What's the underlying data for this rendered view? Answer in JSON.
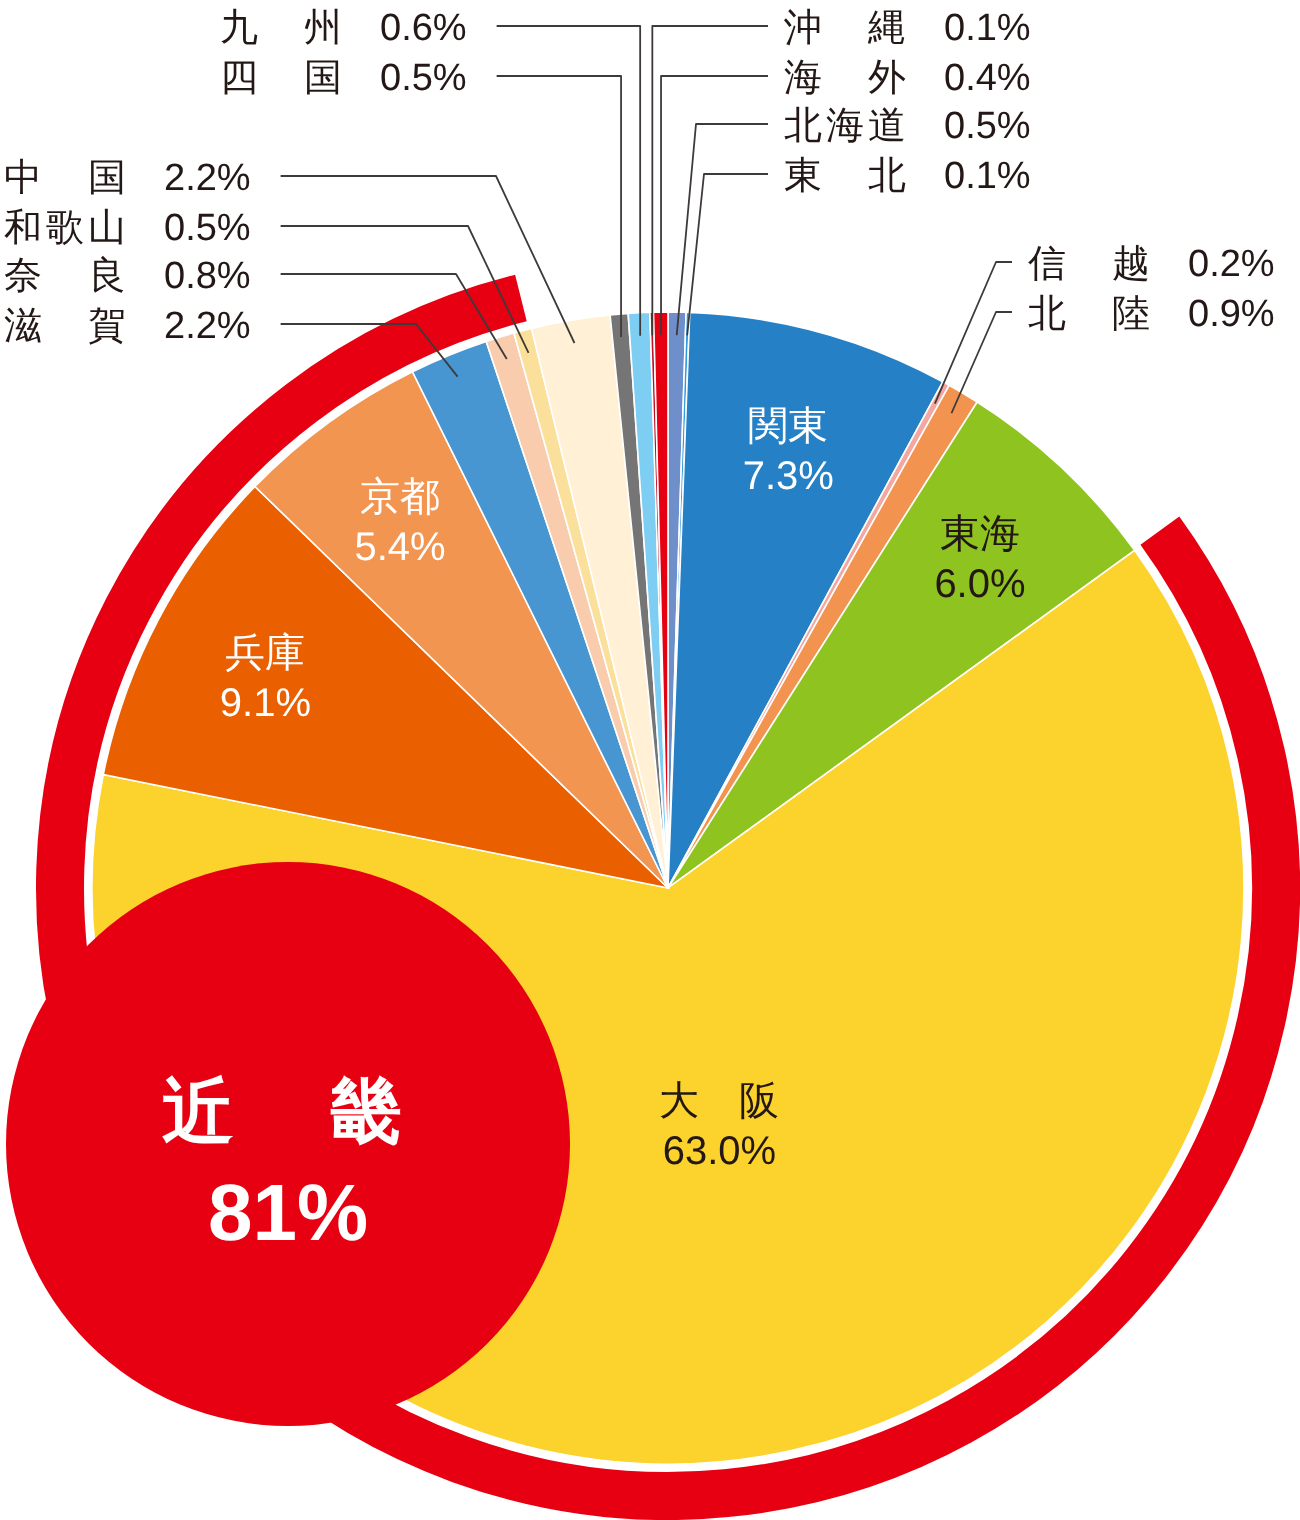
{
  "chart_data": {
    "type": "pie",
    "categories": [
      "北海道",
      "東　北",
      "関東",
      "信　越",
      "北　陸",
      "東海",
      "大　阪",
      "兵庫",
      "京都",
      "滋　賀",
      "奈　良",
      "和歌山",
      "中　国",
      "四　国",
      "九　州",
      "沖　縄",
      "海　外"
    ],
    "values": [
      0.5,
      0.1,
      7.3,
      0.2,
      0.9,
      6.0,
      63.0,
      9.1,
      5.4,
      2.2,
      0.8,
      0.5,
      2.2,
      0.5,
      0.6,
      0.1,
      0.4
    ],
    "value_labels": [
      "0.5%",
      "0.1%",
      "7.3%",
      "0.2%",
      "0.9%",
      "6.0%",
      "63.0%",
      "9.1%",
      "5.4%",
      "2.2%",
      "0.8%",
      "0.5%",
      "2.2%",
      "0.5%",
      "0.6%",
      "0.1%",
      "0.4%"
    ],
    "colors": [
      "#6e8fc9",
      "#2e9be0",
      "#2680c5",
      "#f4a6a0",
      "#f29450",
      "#8fc31f",
      "#fcd22c",
      "#ea6000",
      "#f19551",
      "#4795d1",
      "#f8ccad",
      "#fbe09b",
      "#fff0d6",
      "#757575",
      "#7ecef4",
      "#c30d23",
      "#e60012"
    ],
    "annotations": [
      "近　畿",
      "81%"
    ]
  }
}
